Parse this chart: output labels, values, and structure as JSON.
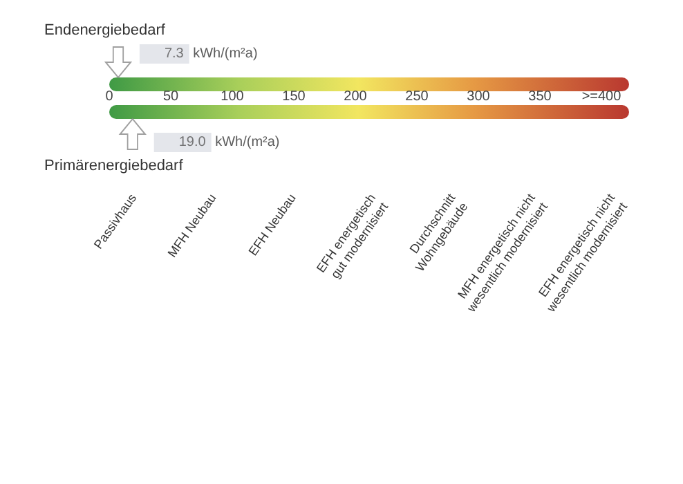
{
  "chart_data": {
    "type": "scatter",
    "orientation": "horizontal",
    "categories": [
      "Endenergiebedarf",
      "Primärenergiebedarf"
    ],
    "xlim": [
      0,
      400
    ],
    "xticks": [
      0,
      50,
      100,
      150,
      200,
      250,
      300,
      350,
      {
        "value": 400,
        "label": ">=400"
      }
    ],
    "values": [
      7.3,
      19.0
    ],
    "value_labels": [
      "7.3 kWh/(m²a)",
      "19.0 kWh/(m²a)"
    ],
    "annotations": [
      "Passivhaus",
      "MFH Neubau",
      "EFH Neubau",
      "EFH energetisch\ngut modernisiert",
      "Durchschnitt\nWohngebäude",
      "MFH energetisch nicht\nwesentlich modernisiert",
      "EFH energetisch nicht\nwesentlich modernisiert"
    ]
  }
}
